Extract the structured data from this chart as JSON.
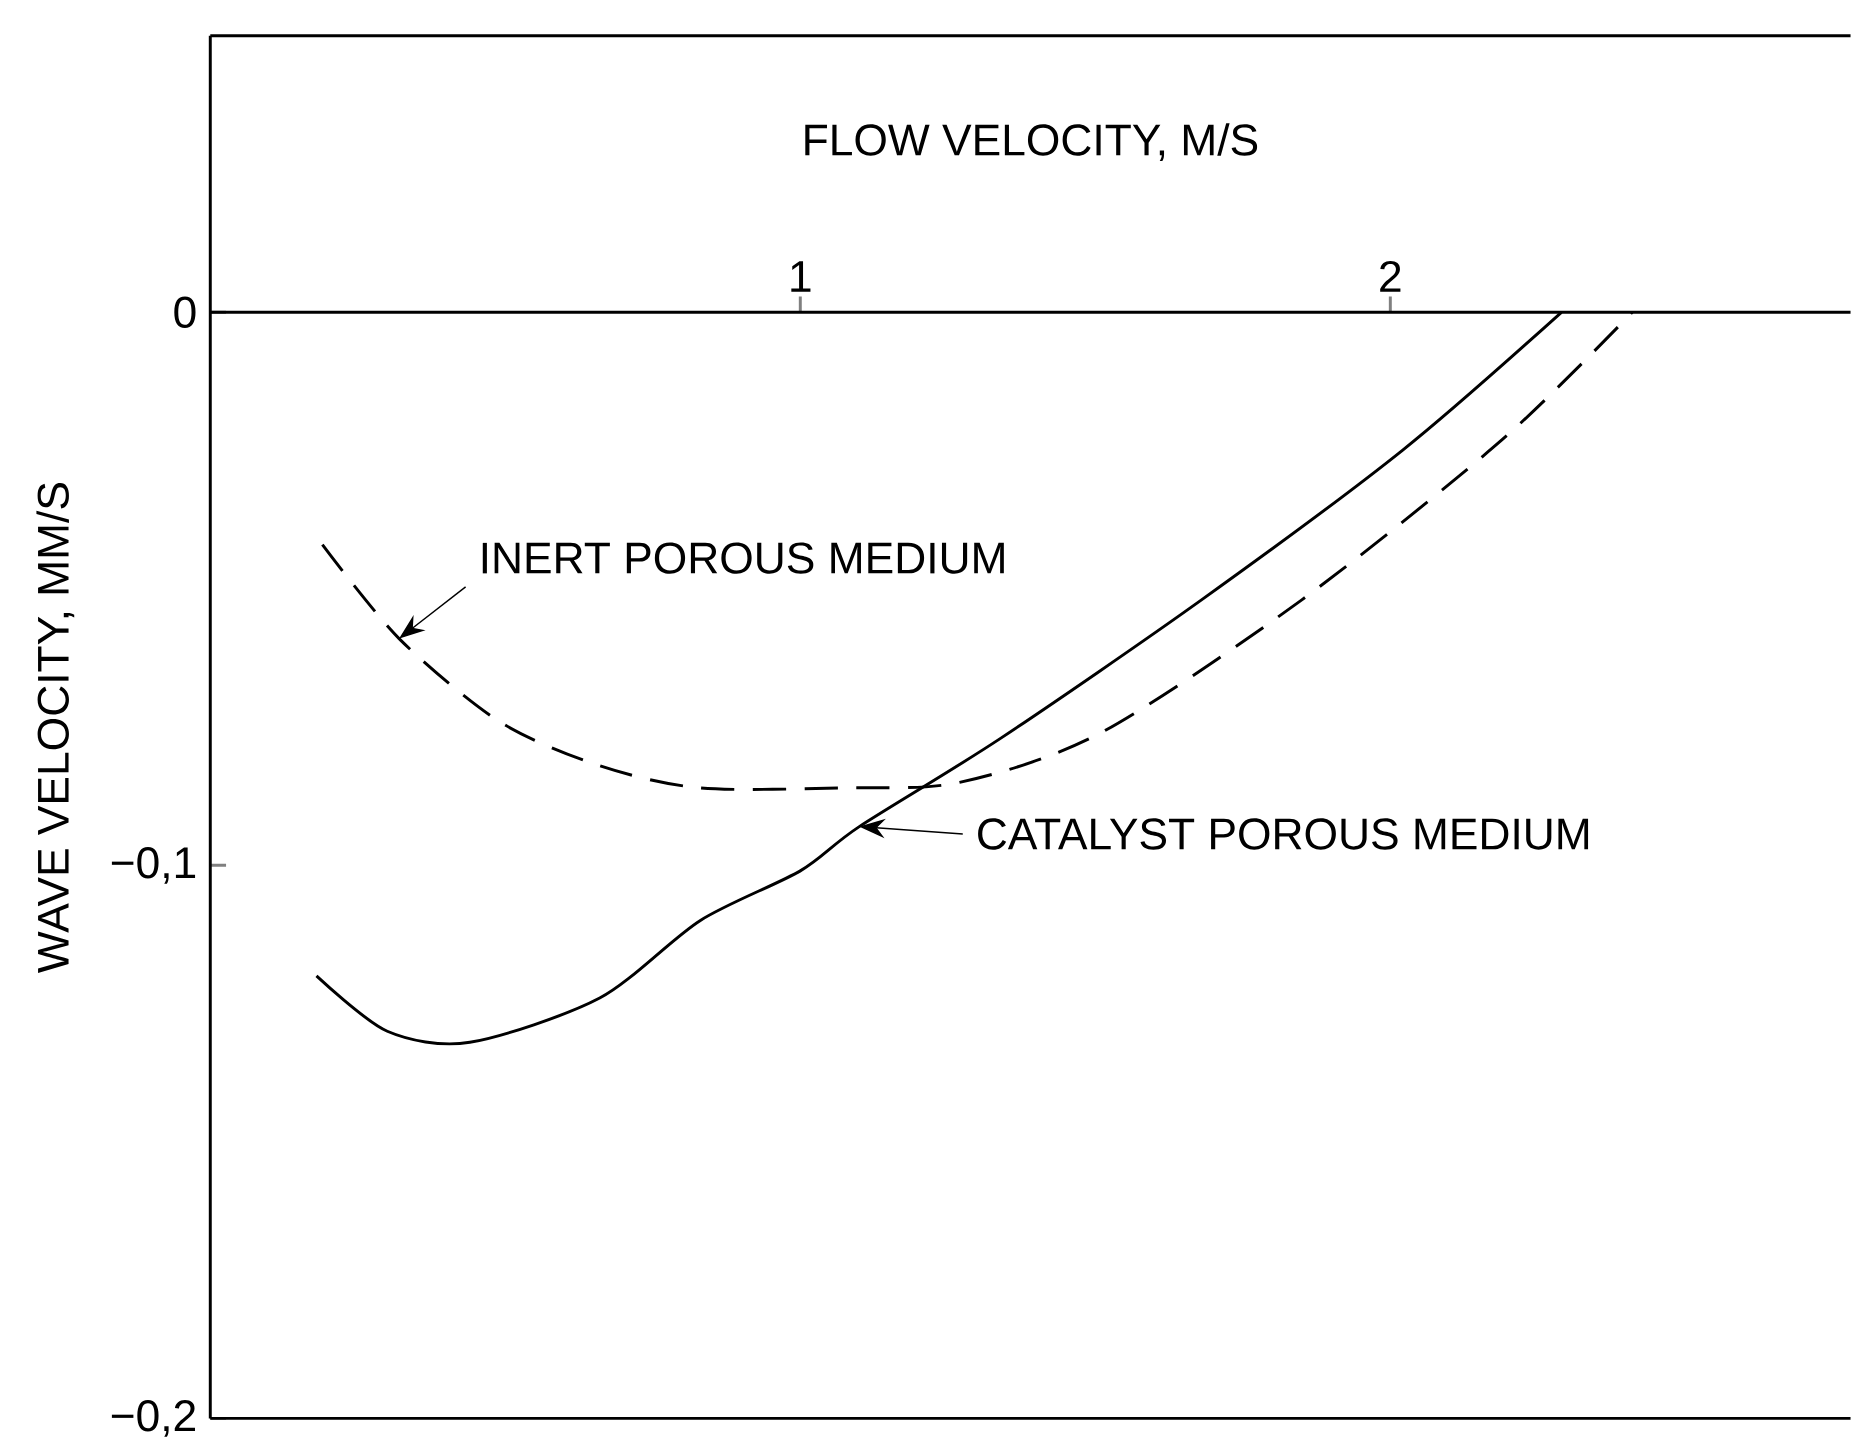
{
  "chart_data": {
    "type": "line",
    "xlabel": "FLOW VELOCITY, M/S",
    "ylabel": "WAVE VELOCITY, MM/S",
    "xlim": [
      0,
      2.78
    ],
    "ylim": [
      -0.2,
      0.05
    ],
    "xticks": [
      1,
      2
    ],
    "yticks": [
      {
        "value": -0.2,
        "label": "−0,2"
      },
      {
        "value": -0.1,
        "label": "−0,1"
      },
      0
    ],
    "tick_labels": "xy",
    "grid": false,
    "marker": "none",
    "series": [
      {
        "color": "#000000",
        "line_style": "solid",
        "x": [
          0.18,
          0.3,
          0.44,
          0.66,
          0.83,
          1.0,
          1.1,
          1.34,
          1.68,
          2.02,
          2.29
        ],
        "values": [
          -0.12,
          -0.13,
          -0.132,
          -0.124,
          -0.11,
          -0.101,
          -0.093,
          -0.077,
          -0.052,
          -0.025,
          0
        ]
      },
      {
        "color": "#000000",
        "line_style": "dashed",
        "x": [
          0.19,
          0.32,
          0.49,
          0.66,
          0.83,
          1.07,
          1.27,
          1.51,
          1.85,
          2.19,
          2.41
        ],
        "values": [
          -0.042,
          -0.059,
          -0.074,
          -0.082,
          -0.086,
          -0.086,
          -0.085,
          -0.076,
          -0.052,
          -0.023,
          0
        ]
      }
    ],
    "annotations": [
      {
        "text": "INERT POROUS MEDIUM",
        "x": 0.32,
        "y": -0.059
      },
      {
        "text": "CATALYST POROUS MEDIUM",
        "x": 1.1,
        "y": -0.093
      }
    ]
  }
}
